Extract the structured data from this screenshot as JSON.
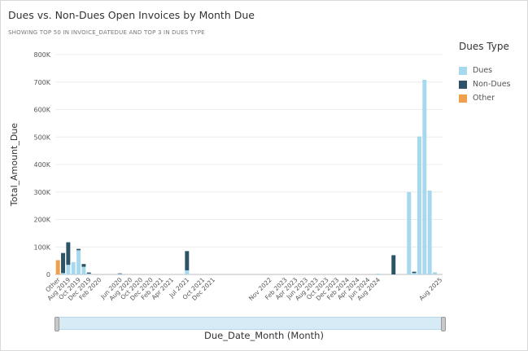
{
  "title": "Dues vs. Non-Dues Open Invoices by Month Due",
  "subtitle": "SHOWING TOP 50 IN INVOICE_DATEDUE AND TOP 3 IN DUES TYPE",
  "legend": {
    "title": "Dues Type",
    "items": [
      {
        "label": "Dues",
        "color": "#a6d8ee"
      },
      {
        "label": "Non-Dues",
        "color": "#2d5367"
      },
      {
        "label": "Other",
        "color": "#f0a04b"
      }
    ]
  },
  "chart_data": {
    "type": "bar",
    "stacked": true,
    "xlabel": "Due_Date_Month (Month)",
    "ylabel": "Total_Amount_Due",
    "ylim": [
      0,
      800000
    ],
    "yticks": [
      "0",
      "100K",
      "200K",
      "300K",
      "400K",
      "500K",
      "600K",
      "700K",
      "800K"
    ],
    "grid": true,
    "legend_position": "right",
    "categories": [
      "Other",
      "Jul 2019",
      "Aug 2019",
      "Sep 2019",
      "Oct 2019",
      "Nov 2019",
      "Dec 2019",
      "Jan 2020",
      "Feb 2020",
      "Mar 2020",
      "Apr 2020",
      "May 2020",
      "Jun 2020",
      "Jul 2020",
      "Aug 2020",
      "Sep 2020",
      "Oct 2020",
      "Nov 2020",
      "Dec 2020",
      "Jan 2021",
      "Feb 2021",
      "Mar 2021",
      "Apr 2021",
      "May 2021",
      "Jun 2021",
      "Jul 2021",
      "Aug 2021",
      "Sep 2021",
      "Oct 2021",
      "Nov 2021",
      "Dec 2021",
      "Jan 2022",
      "Feb 2022",
      "Mar 2022",
      "Apr 2022",
      "May 2022",
      "Jun 2022",
      "Jul 2022",
      "Aug 2022",
      "Sep 2022",
      "Oct 2022",
      "Nov 2022",
      "Dec 2022",
      "Jan 2023",
      "Feb 2023",
      "Mar 2023",
      "Apr 2023",
      "May 2023",
      "Jun 2023",
      "Jul 2023",
      "Aug 2023",
      "Sep 2023",
      "Oct 2023",
      "Nov 2023",
      "Dec 2023",
      "Jan 2024",
      "Feb 2024",
      "Mar 2024",
      "Apr 2024",
      "May 2024",
      "Jun 2024",
      "Jul 2024",
      "Aug 2024",
      "Sep 2024",
      "Oct 2024",
      "Nov 2024",
      "Dec 2024",
      "Jan 2025",
      "Feb 2025",
      "Mar 2025",
      "Apr 2025",
      "May 2025",
      "Jun 2025",
      "Jul 2025",
      "Aug 2025"
    ],
    "tick_labels": [
      "Other",
      "Aug 2019",
      "Oct 2019",
      "Dec 2019",
      "Feb 2020",
      "Jun 2020",
      "Aug 2020",
      "Oct 2020",
      "Dec 2020",
      "Feb 2021",
      "Apr 2021",
      "Jul 2021",
      "Oct 2021",
      "Dec 2021",
      "Nov 2022",
      "Feb 2023",
      "Apr 2023",
      "Jun 2023",
      "Aug 2023",
      "Oct 2023",
      "Dec 2023",
      "Feb 2024",
      "Apr 2024",
      "Jun 2024",
      "Aug 2024",
      "Aug 2025"
    ],
    "series": [
      {
        "name": "Dues",
        "values": [
          0,
          5000,
          35000,
          45000,
          88000,
          28000,
          3000,
          0,
          0,
          0,
          0,
          0,
          2000,
          0,
          0,
          0,
          0,
          0,
          0,
          0,
          0,
          0,
          0,
          0,
          0,
          15000,
          0,
          0,
          0,
          0,
          0,
          0,
          0,
          0,
          0,
          0,
          0,
          0,
          0,
          0,
          0,
          0,
          0,
          0,
          0,
          0,
          0,
          0,
          0,
          0,
          0,
          0,
          0,
          0,
          0,
          0,
          0,
          0,
          0,
          0,
          0,
          0,
          3000,
          0,
          0,
          0,
          0,
          0,
          300000,
          5000,
          502000,
          708000,
          305000,
          8000,
          0
        ]
      },
      {
        "name": "Non-Dues",
        "values": [
          0,
          73000,
          82000,
          0,
          5000,
          10000,
          4000,
          0,
          0,
          0,
          0,
          0,
          2000,
          0,
          0,
          0,
          0,
          0,
          0,
          0,
          0,
          0,
          0,
          0,
          0,
          70000,
          0,
          0,
          0,
          0,
          0,
          0,
          0,
          0,
          0,
          0,
          0,
          0,
          0,
          0,
          0,
          0,
          0,
          0,
          0,
          0,
          0,
          0,
          0,
          0,
          0,
          0,
          0,
          0,
          0,
          0,
          0,
          0,
          0,
          0,
          0,
          0,
          0,
          0,
          0,
          70000,
          0,
          0,
          0,
          5000,
          0,
          0,
          0,
          0,
          0
        ]
      },
      {
        "name": "Other",
        "values": [
          52000,
          0,
          0,
          0,
          0,
          0,
          0,
          0,
          0,
          0,
          0,
          0,
          0,
          0,
          0,
          0,
          0,
          0,
          0,
          0,
          0,
          0,
          0,
          0,
          0,
          0,
          0,
          0,
          0,
          0,
          0,
          0,
          0,
          0,
          0,
          0,
          0,
          0,
          0,
          0,
          0,
          0,
          0,
          0,
          0,
          0,
          0,
          0,
          0,
          0,
          0,
          0,
          0,
          0,
          0,
          0,
          0,
          0,
          0,
          0,
          0,
          0,
          0,
          0,
          0,
          0,
          0,
          0,
          0,
          0,
          0,
          0,
          0,
          0,
          0
        ]
      }
    ]
  }
}
